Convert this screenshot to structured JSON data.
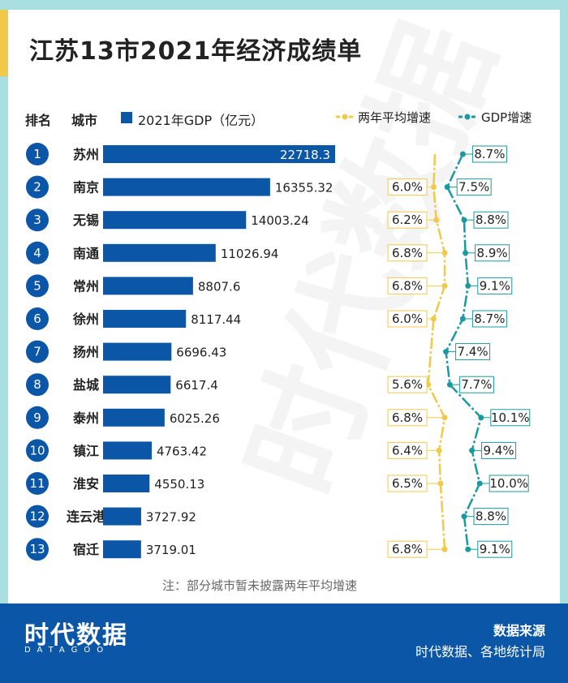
{
  "title": "江苏13市2021年经济成绩单",
  "headers": {
    "rank": "排名",
    "city": "城市",
    "gdp_legend": "2021年GDP（亿元）",
    "avg_legend": "两年平均增速",
    "growth_legend": "GDP增速"
  },
  "note": "注：部分城市暂未披露两年平均增速",
  "footer": {
    "logo": "时代数据",
    "logo_sub": "DATAGOO",
    "source_title": "数据来源",
    "source_text": "时代数据、各地统计局"
  },
  "colors": {
    "bar": "#0b56a6",
    "avg": "#f0c94a",
    "growth": "#1a9aa0",
    "frame": "#a9dfe0"
  },
  "chart_data": {
    "type": "bar",
    "orientation": "horizontal",
    "title": "江苏13市2021年经济成绩单",
    "categories": [
      "苏州",
      "南京",
      "无锡",
      "南通",
      "常州",
      "徐州",
      "扬州",
      "盐城",
      "泰州",
      "镇江",
      "淮安",
      "连云港",
      "宿迁"
    ],
    "ranks": [
      "1",
      "2",
      "3",
      "4",
      "5",
      "6",
      "7",
      "8",
      "9",
      "10",
      "11",
      "12",
      "13"
    ],
    "series": [
      {
        "name": "2021年GDP（亿元）",
        "type": "bar",
        "values": [
          22718.3,
          16355.32,
          14003.24,
          11026.94,
          8807.6,
          8117.44,
          6696.43,
          6617.4,
          6025.26,
          4763.42,
          4550.13,
          3727.92,
          3719.01
        ],
        "labels": [
          "22718.3",
          "16355.32",
          "14003.24",
          "11026.94",
          "8807.6",
          "8117.44",
          "6696.43",
          "6617.4",
          "6025.26",
          "4763.42",
          "4550.13",
          "3727.92",
          "3719.01"
        ]
      },
      {
        "name": "两年平均增速",
        "type": "line",
        "unit": "%",
        "values": [
          null,
          6.0,
          6.2,
          6.8,
          6.8,
          6.0,
          null,
          5.6,
          6.8,
          6.4,
          6.5,
          null,
          6.8
        ],
        "labels": [
          null,
          "6.0%",
          "6.2%",
          "6.8%",
          "6.8%",
          "6.0%",
          null,
          "5.6%",
          "6.8%",
          "6.4%",
          "6.5%",
          null,
          "6.8%"
        ]
      },
      {
        "name": "GDP增速",
        "type": "line",
        "unit": "%",
        "values": [
          8.7,
          7.5,
          8.8,
          8.9,
          9.1,
          8.7,
          7.4,
          7.7,
          10.1,
          9.4,
          10.0,
          8.8,
          9.1
        ],
        "labels": [
          "8.7%",
          "7.5%",
          "8.8%",
          "8.9%",
          "9.1%",
          "8.7%",
          "7.4%",
          "7.7%",
          "10.1%",
          "9.4%",
          "10.0%",
          "8.8%",
          "9.1%"
        ]
      }
    ]
  }
}
